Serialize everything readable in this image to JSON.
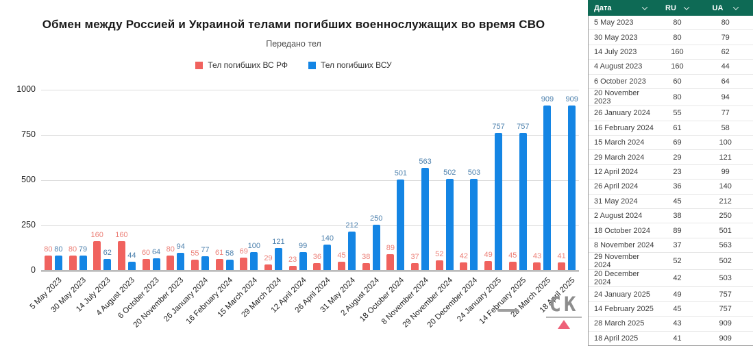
{
  "chart": {
    "title": "Обмен между Россией и Украиной телами погибших военнослужащих во время СВО",
    "subtitle": "Передано тел"
  },
  "chart_data": {
    "type": "bar",
    "categories": [
      "5 May 2023",
      "30 May 2023",
      "14 July 2023",
      "4 August 2023",
      "6 October 2023",
      "20 November 2023",
      "26 January 2024",
      "16 February 2024",
      "15 March 2024",
      "29 March 2024",
      "12 April 2024",
      "26 April 2024",
      "31 May 2024",
      "2 August 2024",
      "18 October 2024",
      "8 November 2024",
      "29 November 2024",
      "20 December 2024",
      "24 January 2025",
      "14 February 2025",
      "28 March 2025",
      "18 April 2025"
    ],
    "series": [
      {
        "name": "Тел погибших ВС РФ",
        "color": "#f0625e",
        "label_color": "#ec8078",
        "values": [
          80,
          80,
          160,
          160,
          60,
          80,
          55,
          61,
          69,
          29,
          23,
          36,
          45,
          38,
          89,
          37,
          52,
          42,
          49,
          45,
          43,
          41
        ]
      },
      {
        "name": "Тел погибших ВСУ",
        "color": "#1485e4",
        "label_color": "#4c80ad",
        "values": [
          80,
          79,
          62,
          44,
          64,
          94,
          77,
          58,
          100,
          121,
          99,
          140,
          212,
          250,
          501,
          563,
          502,
          503,
          757,
          757,
          909,
          909
        ]
      }
    ],
    "title": "Обмен между Россией и Украиной телами погибших военнослужащих во время СВО",
    "xlabel": "",
    "ylabel": "",
    "ylim": [
      0,
      1000
    ],
    "yticks": [
      0,
      250,
      500,
      750,
      1000
    ],
    "grid": true,
    "legend_position": "top"
  },
  "table": {
    "headers": [
      "Дата",
      "RU",
      "UA"
    ],
    "header_bg": "#0e6a55",
    "rows": [
      [
        "5 May 2023",
        80,
        80
      ],
      [
        "30 May 2023",
        80,
        79
      ],
      [
        "14 July 2023",
        160,
        62
      ],
      [
        "4 August 2023",
        160,
        44
      ],
      [
        "6 October 2023",
        60,
        64
      ],
      [
        "20 November 2023",
        80,
        94
      ],
      [
        "26 January 2024",
        55,
        77
      ],
      [
        "16 February 2024",
        61,
        58
      ],
      [
        "15 March 2024",
        69,
        100
      ],
      [
        "29 March 2024",
        29,
        121
      ],
      [
        "12 April 2024",
        23,
        99
      ],
      [
        "26 April 2024",
        36,
        140
      ],
      [
        "31 May 2024",
        45,
        212
      ],
      [
        "2 August 2024",
        38,
        250
      ],
      [
        "18 October 2024",
        89,
        501
      ],
      [
        "8 November 2024",
        37,
        563
      ],
      [
        "29 November 2024",
        52,
        502
      ],
      [
        "20 December 2024",
        42,
        503
      ],
      [
        "24 January 2025",
        49,
        757
      ],
      [
        "14 February 2025",
        45,
        757
      ],
      [
        "28 March 2025",
        43,
        909
      ],
      [
        "18 April 2025",
        41,
        909
      ]
    ]
  },
  "watermark": {
    "text": "СК"
  }
}
